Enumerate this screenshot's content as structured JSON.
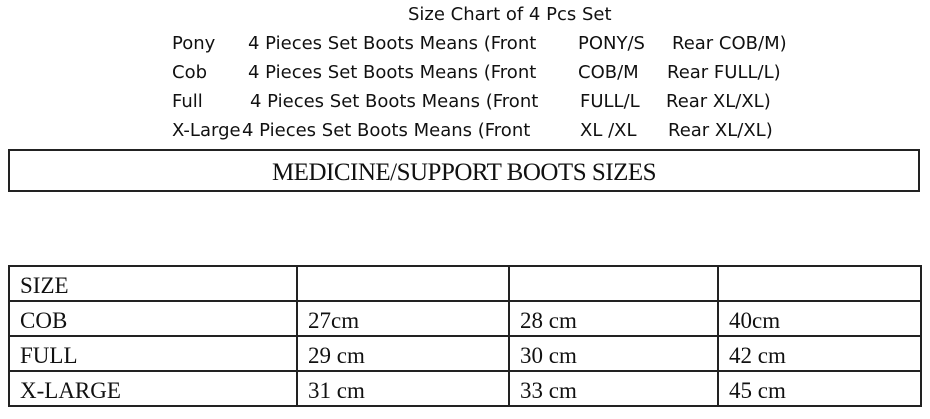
{
  "header": {
    "title": "Size Chart of 4 Pcs Set",
    "rows": [
      {
        "size": "Pony",
        "desc": "4 Pieces Set Boots Means (Front",
        "front": "PONY/S",
        "rear": "Rear COB/M)"
      },
      {
        "size": "Cob",
        "desc": "4 Pieces Set Boots Means (Front",
        "front": "COB/M",
        "rear": "Rear FULL/L)"
      },
      {
        "size": "Full",
        "desc": "4 Pieces Set Boots Means (Front",
        "front": "FULL/L",
        "rear": "Rear XL/XL)"
      },
      {
        "size": "X-Large",
        "desc": "4 Pieces Set Boots Means (Front",
        "front": "XL /XL",
        "rear": "Rear XL/XL)"
      }
    ]
  },
  "section_title": "MEDICINE/SUPPORT BOOTS SIZES",
  "table": {
    "header": [
      "SIZE",
      "",
      "",
      ""
    ],
    "rows": [
      [
        "COB",
        "27cm",
        "28 cm",
        "40cm"
      ],
      [
        "FULL",
        "29 cm",
        "30 cm",
        "42 cm"
      ],
      [
        "X-LARGE",
        "31 cm",
        "33 cm",
        "45 cm"
      ]
    ]
  }
}
